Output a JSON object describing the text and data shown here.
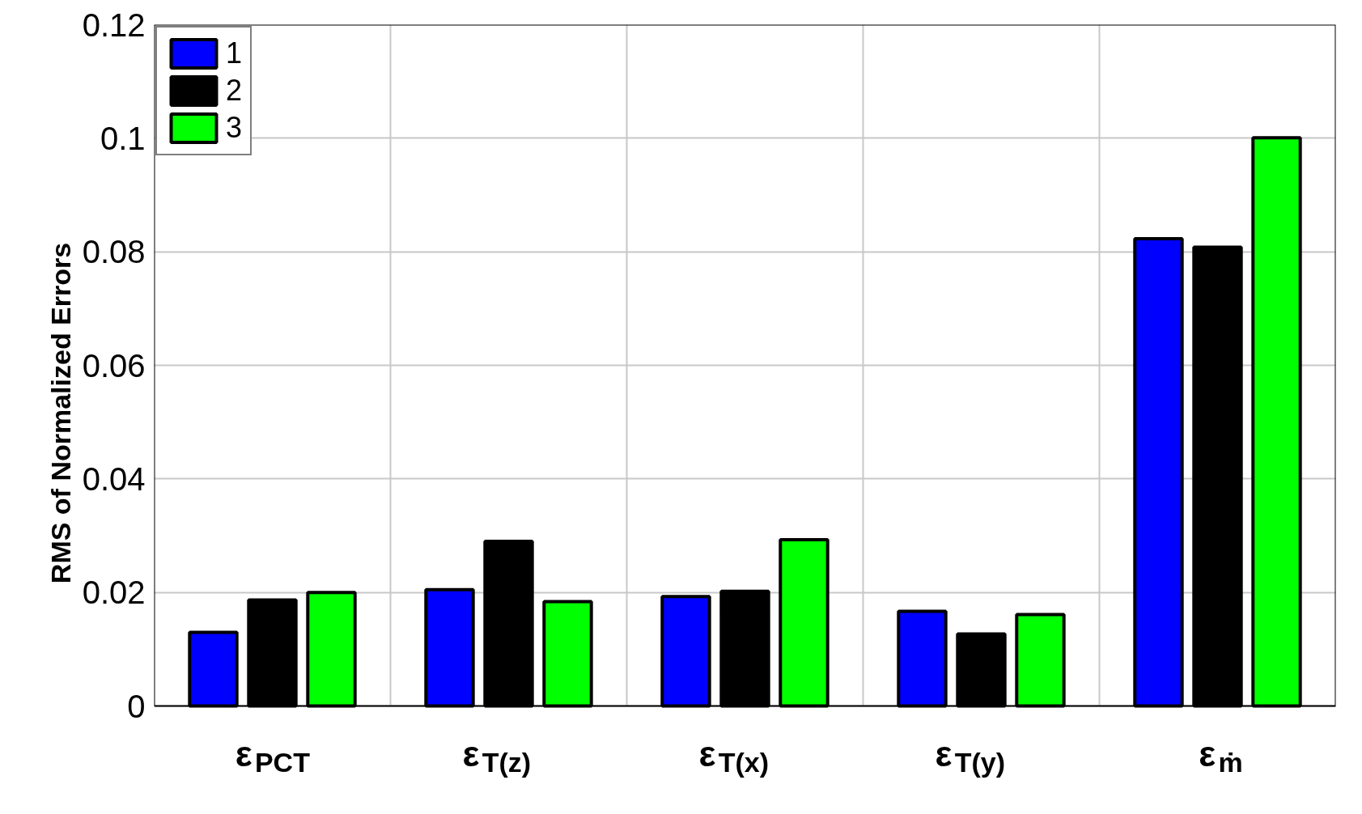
{
  "chart_data": {
    "type": "bar",
    "ylabel": "RMS of Normalized Errors",
    "categories": [
      "ε$_{PCT}$",
      "ε$_{T(z)}$",
      "ε$_{T(x)}$",
      "ε$_{T(y)}$",
      "ε$_{ṁ}$"
    ],
    "series": [
      {
        "name": "1",
        "color": "#0000ff",
        "values": [
          0.013,
          0.0205,
          0.0193,
          0.0167,
          0.0823
        ]
      },
      {
        "name": "2",
        "color": "#000000",
        "values": [
          0.0187,
          0.029,
          0.0202,
          0.0127,
          0.0808
        ]
      },
      {
        "name": "3",
        "color": "#00ff00",
        "values": [
          0.02,
          0.0184,
          0.0293,
          0.0161,
          0.1001
        ]
      }
    ],
    "ylim": [
      0,
      0.12
    ],
    "yticks": [
      0,
      0.02,
      0.04,
      0.06,
      0.08,
      0.1,
      0.12
    ],
    "grid": true,
    "legend": "top left"
  }
}
